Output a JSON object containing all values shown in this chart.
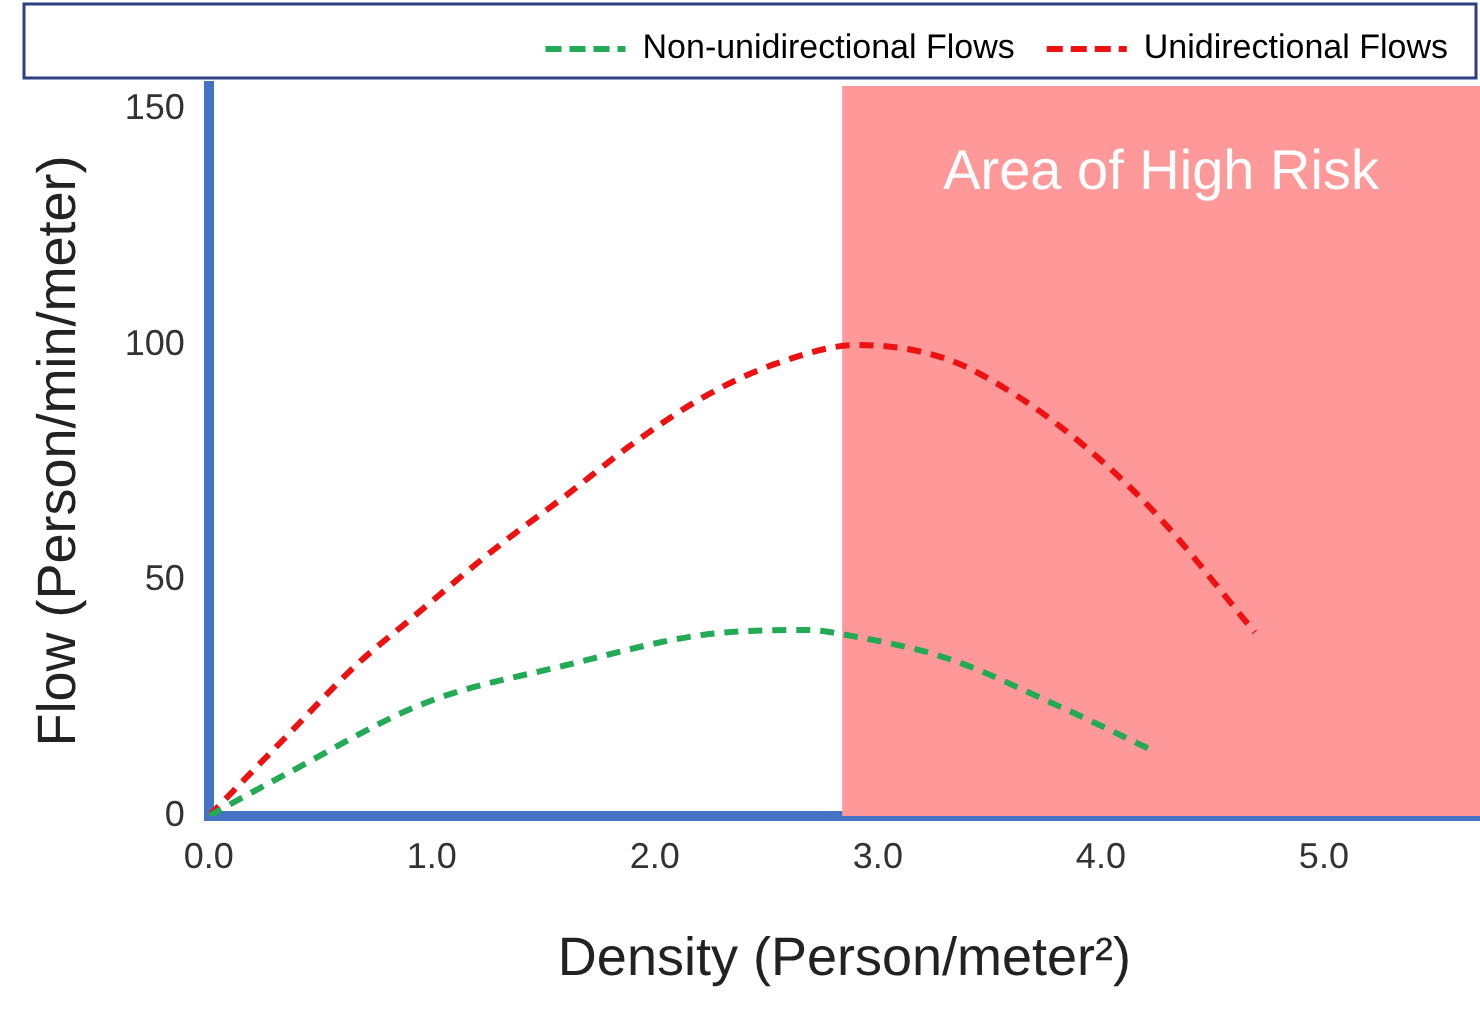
{
  "chart_data": {
    "type": "line",
    "xlabel": "Density (Person/meter²)",
    "ylabel": "Flow (Person/min/meter)",
    "xlim": [
      0,
      5.7
    ],
    "ylim": [
      0,
      155
    ],
    "xticks": [
      {
        "value": 0,
        "label": "0.0"
      },
      {
        "value": 1,
        "label": "1.0"
      },
      {
        "value": 2,
        "label": "2.0"
      },
      {
        "value": 3,
        "label": "3.0"
      },
      {
        "value": 4,
        "label": "4.0"
      },
      {
        "value": 5,
        "label": "5.0"
      }
    ],
    "yticks": [
      0,
      50,
      100,
      150
    ],
    "series": [
      {
        "name": "Non-unidirectional Flows",
        "color": "#22aa55",
        "x": [
          0,
          0.35,
          0.97,
          1.6,
          2.22,
          2.69,
          2.85,
          3.31,
          3.78,
          4.25
        ],
        "values": [
          0,
          9,
          24,
          32,
          38.5,
          39.5,
          38.5,
          33.5,
          24,
          13.5
        ]
      },
      {
        "name": "Unidirectional Flows",
        "color": "#ee1111",
        "x": [
          0,
          0.35,
          0.66,
          0.91,
          1.29,
          1.6,
          1.9,
          2.22,
          2.54,
          2.91,
          3.31,
          3.63,
          3.94,
          4.25,
          4.69
        ],
        "values": [
          0,
          17,
          32,
          42,
          57,
          68,
          79,
          89,
          96,
          100,
          97,
          89,
          78,
          64,
          39
        ]
      }
    ],
    "bands": [
      {
        "axis": "x",
        "from": 2.84,
        "to": 5.7,
        "label": "Area of High Risk",
        "color": "#ff9999"
      }
    ],
    "grid": false,
    "legend": "top",
    "line_style": "dashed",
    "marker": "none"
  }
}
